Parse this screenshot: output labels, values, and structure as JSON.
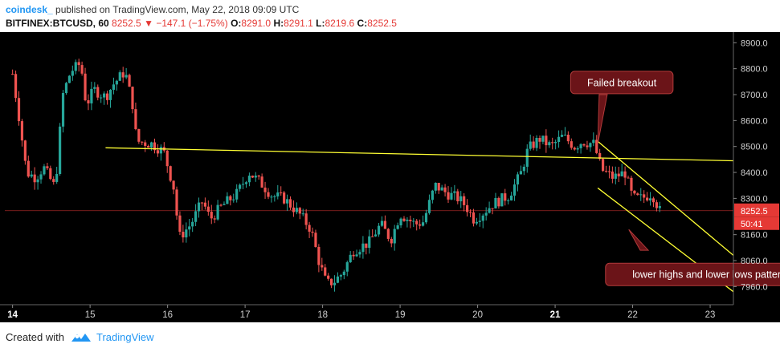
{
  "header": {
    "author": "coindesk_",
    "published": "published on TradingView.com, May 22, 2018 09:09 UTC",
    "symbol": "BITFINEX:BTCUSD, 60",
    "last": "8252.5",
    "change": "−147.1 (−1.75%)",
    "o_label": "O:",
    "o_val": "8291.0",
    "h_label": "H:",
    "h_val": "8291.1",
    "l_label": "L:",
    "l_val": "8219.6",
    "c_label": "C:",
    "c_val": "8252.5"
  },
  "colors": {
    "up": "#26a69a",
    "down": "#ef5350",
    "trendline": "#ffff33",
    "annotation_bg": "#6b1418",
    "annotation_border": "#b23a3a",
    "price_badge": "#e53935",
    "background": "#000000"
  },
  "footer": {
    "created_with": "Created with",
    "brand": "TradingView",
    "brand_icon": "tradingview-logo-icon"
  },
  "chart_data": {
    "type": "candlestick",
    "title": "",
    "xlabel": "",
    "ylabel": "",
    "ylim": [
      7890,
      8935
    ],
    "xlim": [
      13.9,
      23.3
    ],
    "grid": false,
    "y_ticks": [
      "8900.0",
      "8800.0",
      "8700.0",
      "8600.0",
      "8500.0",
      "8400.0",
      "8300.0",
      "8160.0",
      "8060.0",
      "7960.0"
    ],
    "y_tick_values": [
      8900,
      8800,
      8700,
      8600,
      8500,
      8400,
      8300,
      8160,
      8060,
      7960
    ],
    "x_ticks": [
      "14",
      "15",
      "16",
      "17",
      "18",
      "19",
      "20",
      "21",
      "22",
      "23"
    ],
    "x_tick_values": [
      14,
      15,
      16,
      17,
      18,
      19,
      20,
      21,
      22,
      23
    ],
    "x_ticks_bold": [
      "14",
      "21"
    ],
    "last_price": 8252.5,
    "last_price_label": "8252.5",
    "countdown_label": "50:41",
    "candle_path": [
      [
        14.0,
        8780
      ],
      [
        14.08,
        8620
      ],
      [
        14.18,
        8400
      ],
      [
        14.3,
        8380
      ],
      [
        14.4,
        8420
      ],
      [
        14.55,
        8340
      ],
      [
        14.65,
        8700
      ],
      [
        14.75,
        8790
      ],
      [
        14.88,
        8820
      ],
      [
        14.95,
        8660
      ],
      [
        15.05,
        8720
      ],
      [
        15.2,
        8690
      ],
      [
        15.3,
        8740
      ],
      [
        15.45,
        8790
      ],
      [
        15.55,
        8660
      ],
      [
        15.6,
        8520
      ],
      [
        15.8,
        8510
      ],
      [
        15.95,
        8480
      ],
      [
        16.08,
        8340
      ],
      [
        16.15,
        8150
      ],
      [
        16.3,
        8200
      ],
      [
        16.45,
        8290
      ],
      [
        16.55,
        8220
      ],
      [
        16.7,
        8270
      ],
      [
        16.9,
        8320
      ],
      [
        17.05,
        8400
      ],
      [
        17.2,
        8360
      ],
      [
        17.35,
        8310
      ],
      [
        17.5,
        8300
      ],
      [
        17.7,
        8240
      ],
      [
        17.85,
        8180
      ],
      [
        17.95,
        8060
      ],
      [
        18.05,
        7970
      ],
      [
        18.15,
        7980
      ],
      [
        18.25,
        8010
      ],
      [
        18.4,
        8100
      ],
      [
        18.6,
        8130
      ],
      [
        18.75,
        8200
      ],
      [
        18.88,
        8140
      ],
      [
        19.0,
        8240
      ],
      [
        19.2,
        8200
      ],
      [
        19.3,
        8210
      ],
      [
        19.45,
        8350
      ],
      [
        19.6,
        8320
      ],
      [
        19.75,
        8300
      ],
      [
        19.85,
        8270
      ],
      [
        19.95,
        8220
      ],
      [
        20.05,
        8240
      ],
      [
        20.2,
        8280
      ],
      [
        20.4,
        8310
      ],
      [
        20.55,
        8390
      ],
      [
        20.65,
        8490
      ],
      [
        20.8,
        8530
      ],
      [
        20.95,
        8500
      ],
      [
        21.1,
        8540
      ],
      [
        21.25,
        8500
      ],
      [
        21.35,
        8520
      ],
      [
        21.5,
        8510
      ],
      [
        21.6,
        8410
      ],
      [
        21.75,
        8380
      ],
      [
        21.9,
        8400
      ],
      [
        22.0,
        8300
      ],
      [
        22.12,
        8300
      ],
      [
        22.25,
        8320
      ],
      [
        22.35,
        8252
      ]
    ],
    "series": [
      {
        "name": "",
        "kind": "trendline",
        "points": [
          [
            15.2,
            8495
          ],
          [
            23.3,
            8445
          ]
        ]
      },
      {
        "name": "",
        "kind": "channel-upper",
        "points": [
          [
            21.55,
            8520
          ],
          [
            23.3,
            8080
          ]
        ]
      },
      {
        "name": "",
        "kind": "channel-lower",
        "points": [
          [
            21.55,
            8340
          ],
          [
            23.3,
            7940
          ]
        ]
      },
      {
        "name": "",
        "kind": "pointer",
        "points": [
          [
            21.62,
            8700
          ],
          [
            21.55,
            8510
          ]
        ]
      },
      {
        "name": "",
        "kind": "pointer",
        "points": [
          [
            22.15,
            8100
          ],
          [
            21.95,
            8180
          ]
        ]
      }
    ],
    "annotations": [
      {
        "text": "Failed breakout",
        "x": 21.2,
        "y": 8790
      },
      {
        "text": "lower highs and lower lows pattern",
        "x": 21.65,
        "y": 8050
      }
    ]
  }
}
